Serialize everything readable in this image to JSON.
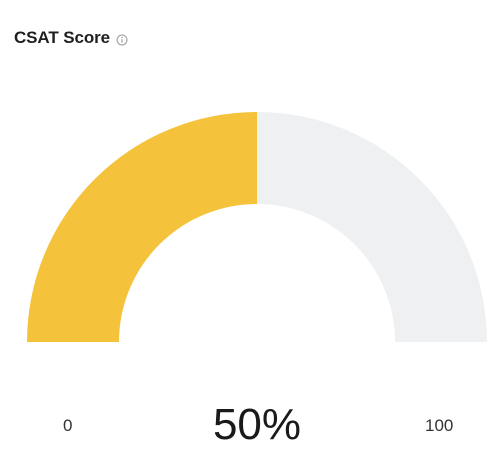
{
  "widget": {
    "title": "CSAT Score",
    "info_icon": "info-circle-icon"
  },
  "gauge": {
    "value_label": "50%",
    "value_fraction": 0.5,
    "min_label": "0",
    "max_label": "100",
    "fill_color": "#F4C33B",
    "track_color": "#EFF0F2"
  }
}
